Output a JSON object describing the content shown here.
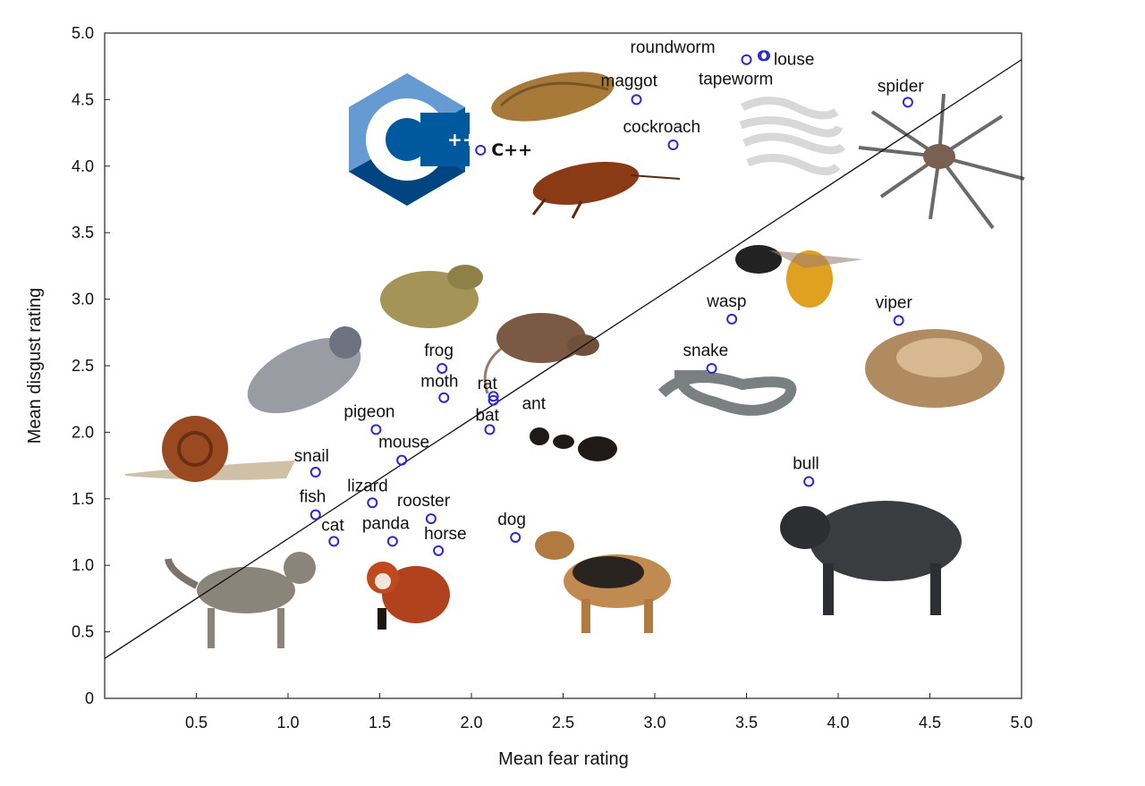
{
  "chart_data": {
    "type": "scatter",
    "xlabel": "Mean fear rating",
    "ylabel": "Mean disgust rating",
    "xlim": [
      0,
      5.0
    ],
    "ylim": [
      0,
      5.0
    ],
    "x_ticks": [
      "0.5",
      "1.0",
      "1.5",
      "2.0",
      "2.5",
      "3.0",
      "3.5",
      "4.0",
      "4.5",
      "5.0"
    ],
    "y_ticks": [
      "0",
      "0.5",
      "1.0",
      "1.5",
      "2.0",
      "2.5",
      "3.0",
      "3.5",
      "4.0",
      "4.5",
      "5.0"
    ],
    "reference_line": {
      "from": [
        0,
        0.3
      ],
      "to": [
        5.0,
        4.8
      ]
    },
    "grid": false,
    "points": [
      {
        "label": "roundworm",
        "x": 3.5,
        "y": 4.8,
        "icon": "roundworm-photo"
      },
      {
        "label": "louse",
        "x": 3.6,
        "y": 4.83,
        "icon": "louse-photo"
      },
      {
        "label": "tapeworm",
        "x": 3.59,
        "y": 4.83,
        "icon": "tapeworm-photo"
      },
      {
        "label": "maggot",
        "x": 2.9,
        "y": 4.5,
        "icon": "maggot-photo"
      },
      {
        "label": "spider",
        "x": 4.38,
        "y": 4.48,
        "icon": "spider-photo"
      },
      {
        "label": "cockroach",
        "x": 3.1,
        "y": 4.16,
        "icon": "cockroach-photo"
      },
      {
        "label": "C++",
        "x": 2.05,
        "y": 4.12,
        "icon": "cpp-logo"
      },
      {
        "label": "wasp",
        "x": 3.42,
        "y": 2.85,
        "icon": "wasp-photo"
      },
      {
        "label": "viper",
        "x": 4.33,
        "y": 2.84,
        "icon": "viper-photo"
      },
      {
        "label": "frog",
        "x": 1.84,
        "y": 2.48,
        "icon": "frog-photo"
      },
      {
        "label": "snake",
        "x": 3.31,
        "y": 2.48,
        "icon": "snake-photo"
      },
      {
        "label": "moth",
        "x": 1.85,
        "y": 2.26,
        "icon": "moth-photo"
      },
      {
        "label": "rat",
        "x": 2.12,
        "y": 2.27,
        "icon": "rat-photo"
      },
      {
        "label": "ant",
        "x": 2.12,
        "y": 2.24,
        "icon": "ant-photo"
      },
      {
        "label": "bat",
        "x": 2.1,
        "y": 2.02,
        "icon": "bat-photo"
      },
      {
        "label": "pigeon",
        "x": 1.48,
        "y": 2.02,
        "icon": "pigeon-photo"
      },
      {
        "label": "mouse",
        "x": 1.62,
        "y": 1.79,
        "icon": "mouse-photo"
      },
      {
        "label": "snail",
        "x": 1.15,
        "y": 1.7,
        "icon": "snail-photo"
      },
      {
        "label": "bull",
        "x": 3.84,
        "y": 1.63,
        "icon": "bull-photo"
      },
      {
        "label": "lizard",
        "x": 1.46,
        "y": 1.47,
        "icon": "lizard-photo"
      },
      {
        "label": "fish",
        "x": 1.15,
        "y": 1.38,
        "icon": "fish-photo"
      },
      {
        "label": "rooster",
        "x": 1.78,
        "y": 1.35,
        "icon": "rooster-photo"
      },
      {
        "label": "dog",
        "x": 2.24,
        "y": 1.21,
        "icon": "dog-photo"
      },
      {
        "label": "cat",
        "x": 1.25,
        "y": 1.18,
        "icon": "cat-photo"
      },
      {
        "label": "panda",
        "x": 1.57,
        "y": 1.18,
        "icon": "red-panda-photo"
      },
      {
        "label": "horse",
        "x": 1.82,
        "y": 1.11,
        "icon": "horse-photo"
      }
    ],
    "cpp_logo": {
      "text": "C++",
      "colors": {
        "light": "#659ad2",
        "mid": "#00599c",
        "dark": "#004482"
      }
    }
  }
}
